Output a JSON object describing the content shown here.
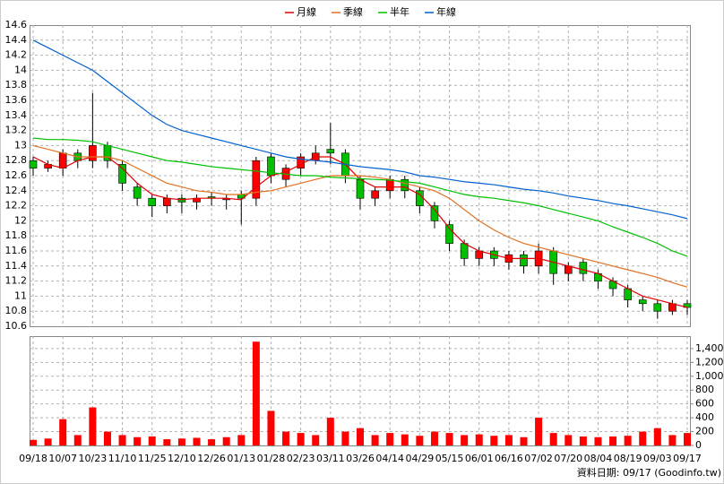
{
  "chart_data": [
    {
      "type": "candlestick",
      "legend": "top",
      "grid": true,
      "categories": [
        "09/18",
        null,
        "10/07",
        null,
        "10/23",
        null,
        "11/10",
        null,
        "11/25",
        null,
        "12/10",
        null,
        "12/26",
        null,
        "01/13",
        null,
        "01/28",
        null,
        "02/23",
        null,
        "03/11",
        null,
        "03/26",
        null,
        "04/14",
        null,
        "04/29",
        null,
        "05/15",
        null,
        "06/01",
        null,
        "06/16",
        null,
        "07/02",
        null,
        "07/20",
        null,
        "08/04",
        null,
        "08/19",
        null,
        "09/03",
        null,
        "09/17"
      ],
      "open": [
        12.8,
        12.7,
        12.7,
        12.9,
        12.8,
        13.0,
        12.75,
        12.45,
        12.3,
        12.2,
        12.3,
        12.25,
        12.32,
        12.28,
        12.35,
        12.3,
        12.85,
        12.55,
        12.7,
        12.8,
        12.95,
        12.9,
        12.55,
        12.3,
        12.4,
        12.55,
        12.4,
        12.2,
        11.95,
        11.7,
        11.5,
        11.6,
        11.45,
        11.55,
        11.4,
        11.6,
        11.3,
        11.45,
        11.3,
        11.2,
        11.1,
        10.95,
        10.9,
        10.8,
        10.9
      ],
      "high": [
        12.85,
        12.8,
        12.95,
        12.95,
        13.7,
        13.05,
        12.8,
        12.5,
        12.35,
        12.35,
        12.35,
        12.35,
        12.38,
        12.35,
        12.4,
        12.85,
        12.9,
        12.75,
        12.9,
        13.0,
        13.3,
        12.95,
        12.6,
        12.45,
        12.6,
        12.6,
        12.45,
        12.25,
        12.0,
        11.75,
        11.65,
        11.65,
        11.6,
        11.6,
        11.7,
        11.65,
        11.45,
        11.5,
        11.35,
        11.25,
        11.15,
        11.0,
        10.95,
        10.95,
        10.95
      ],
      "low": [
        12.6,
        12.65,
        12.6,
        12.7,
        12.7,
        12.7,
        12.4,
        12.2,
        12.05,
        12.1,
        12.1,
        12.15,
        12.2,
        12.15,
        11.95,
        12.2,
        12.5,
        12.45,
        12.6,
        12.75,
        12.75,
        12.5,
        12.15,
        12.2,
        12.3,
        12.3,
        12.1,
        11.9,
        11.6,
        11.4,
        11.4,
        11.4,
        11.35,
        11.3,
        11.3,
        11.15,
        11.2,
        11.2,
        11.1,
        11.0,
        10.85,
        10.8,
        10.7,
        10.75,
        10.75
      ],
      "close": [
        12.7,
        12.75,
        12.9,
        12.8,
        13.0,
        12.8,
        12.5,
        12.3,
        12.2,
        12.3,
        12.25,
        12.3,
        12.3,
        12.3,
        12.3,
        12.8,
        12.6,
        12.7,
        12.85,
        12.9,
        12.9,
        12.6,
        12.3,
        12.4,
        12.55,
        12.4,
        12.2,
        12.0,
        11.7,
        11.5,
        11.6,
        11.5,
        11.55,
        11.4,
        11.6,
        11.3,
        11.4,
        11.3,
        11.2,
        11.1,
        10.95,
        10.9,
        10.8,
        10.9,
        10.85
      ],
      "up_color": "#ff0000",
      "down_color": "#00c000",
      "series": [
        {
          "name": "月線",
          "color": "#e00000",
          "values": [
            12.85,
            12.75,
            12.7,
            12.8,
            12.85,
            12.85,
            12.7,
            12.5,
            12.35,
            12.3,
            12.28,
            12.3,
            12.3,
            12.3,
            12.28,
            12.45,
            12.6,
            12.65,
            12.75,
            12.85,
            12.85,
            12.75,
            12.55,
            12.45,
            12.45,
            12.45,
            12.35,
            12.15,
            11.9,
            11.7,
            11.6,
            11.55,
            11.5,
            11.5,
            11.5,
            11.45,
            11.4,
            11.35,
            11.3,
            11.2,
            11.1,
            11.0,
            10.95,
            10.9,
            10.85
          ]
        },
        {
          "name": "季線",
          "color": "#e07020",
          "values": [
            13.0,
            12.95,
            12.9,
            12.85,
            12.85,
            12.85,
            12.8,
            12.7,
            12.6,
            12.5,
            12.45,
            12.4,
            12.38,
            12.35,
            12.35,
            12.38,
            12.4,
            12.45,
            12.5,
            12.55,
            12.6,
            12.6,
            12.6,
            12.58,
            12.55,
            12.5,
            12.45,
            12.4,
            12.3,
            12.15,
            12.0,
            11.88,
            11.78,
            11.7,
            11.65,
            11.6,
            11.55,
            11.5,
            11.45,
            11.4,
            11.35,
            11.3,
            11.25,
            11.18,
            11.12
          ]
        },
        {
          "name": "半年",
          "color": "#00c000",
          "values": [
            13.1,
            13.08,
            13.08,
            13.07,
            13.05,
            13.0,
            12.95,
            12.9,
            12.85,
            12.8,
            12.78,
            12.75,
            12.72,
            12.7,
            12.68,
            12.66,
            12.64,
            12.62,
            12.6,
            12.6,
            12.58,
            12.57,
            12.56,
            12.55,
            12.54,
            12.52,
            12.5,
            12.45,
            12.4,
            12.35,
            12.32,
            12.3,
            12.27,
            12.24,
            12.2,
            12.15,
            12.1,
            12.05,
            12.0,
            11.92,
            11.85,
            11.78,
            11.7,
            11.6,
            11.53
          ]
        },
        {
          "name": "年線",
          "color": "#0060d0",
          "values": [
            14.4,
            14.3,
            14.2,
            14.1,
            14.0,
            13.85,
            13.7,
            13.55,
            13.4,
            13.28,
            13.2,
            13.15,
            13.1,
            13.05,
            13.0,
            12.95,
            12.9,
            12.85,
            12.82,
            12.8,
            12.78,
            12.75,
            12.72,
            12.7,
            12.68,
            12.65,
            12.6,
            12.58,
            12.55,
            12.52,
            12.5,
            12.48,
            12.45,
            12.42,
            12.4,
            12.37,
            12.33,
            12.3,
            12.27,
            12.23,
            12.2,
            12.16,
            12.12,
            12.08,
            12.03
          ]
        }
      ],
      "ylim": [
        10.6,
        14.6
      ],
      "yticks": [
        10.6,
        10.8,
        11,
        11.2,
        11.4,
        11.6,
        11.8,
        12,
        12.2,
        12.4,
        12.6,
        12.8,
        13,
        13.2,
        13.4,
        13.6,
        13.8,
        14,
        14.2,
        14.4,
        14.6
      ]
    },
    {
      "type": "bar",
      "color": "#ff0000",
      "grid": true,
      "values": [
        80,
        100,
        380,
        150,
        550,
        200,
        150,
        120,
        130,
        90,
        100,
        110,
        90,
        120,
        150,
        1500,
        500,
        200,
        180,
        150,
        400,
        200,
        250,
        150,
        180,
        160,
        140,
        200,
        180,
        150,
        160,
        140,
        150,
        120,
        400,
        180,
        150,
        130,
        120,
        130,
        140,
        200,
        250,
        150,
        180
      ],
      "ylim": [
        0,
        1580
      ],
      "yticks": [
        0,
        200,
        400,
        600,
        800,
        {
          "value": 1000,
          "label": "1,000"
        },
        {
          "value": 1200,
          "label": "1,200"
        },
        {
          "value": 1400,
          "label": "1,400"
        }
      ],
      "source": "資料日期: 09/17  (Goodinfo.tw)"
    }
  ]
}
